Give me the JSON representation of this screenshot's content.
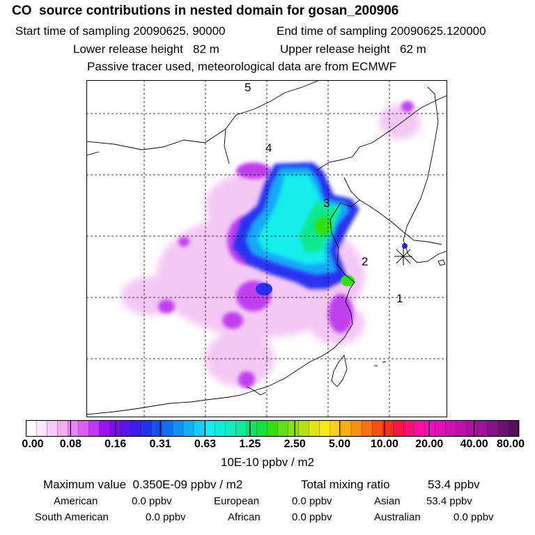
{
  "header": {
    "title": "CO  source contributions in nested domain for gosan_200906",
    "start_label": "Start time of sampling 20090625. 90000",
    "end_label": "End time of sampling 20090625.120000",
    "lower_label": "Lower release height   82 m",
    "upper_label": "Upper release height   62 m",
    "note": "Passive tracer used, meteorological data are from ECMWF"
  },
  "map": {
    "region_labels": [
      "5",
      "4",
      "3",
      "2",
      "1"
    ],
    "receptor_icon": "asterisk-icon"
  },
  "colorbar": {
    "ticks": [
      "0.00",
      "0.08",
      "0.16",
      "0.31",
      "0.63",
      "1.25",
      "2.50",
      "5.00",
      "10.00",
      "20.00",
      "40.00",
      "80.00"
    ],
    "unit": "10E-10 ppbv / m2",
    "colors": [
      "#ffffff",
      "#fbe6fb",
      "#f6ccf6",
      "#eeb0ee",
      "#e488f0",
      "#d860f4",
      "#c236f6",
      "#a010f4",
      "#7a10f0",
      "#5a14ee",
      "#3a1cee",
      "#2430f0",
      "#1450f2",
      "#1070f4",
      "#1090f6",
      "#10b0f8",
      "#10d0f8",
      "#12eeee",
      "#10eed8",
      "#10eec0",
      "#10e89c",
      "#10e070",
      "#14e040",
      "#30e010",
      "#60e010",
      "#90e010",
      "#b8e010",
      "#e0e810",
      "#f4ec10",
      "#f8d010",
      "#f8b010",
      "#f89010",
      "#f87010",
      "#f85010",
      "#f83020",
      "#f81440",
      "#f81070",
      "#f8109c",
      "#f010b8",
      "#e010b8",
      "#d010b0",
      "#c010a8",
      "#b010a0",
      "#a01098",
      "#881088",
      "#6e1070",
      "#58105a"
    ]
  },
  "stats": {
    "max_label": "Maximum value  0.350E-09 ppbv / m2",
    "total_label": "Total mixing ratio",
    "total_value": "53.4 ppbv",
    "american_label": "American",
    "american_value": "0.0 ppbv",
    "european_label": "European",
    "european_value": "0.0 ppbv",
    "asian_label": "Asian",
    "asian_value": "53.4 ppbv",
    "south_american_label": "South American",
    "south_american_value": "0.0 ppbv",
    "african_label": "African",
    "african_value": "0.0 ppbv",
    "australian_label": "Australian",
    "australian_value": "0.0 ppbv"
  }
}
